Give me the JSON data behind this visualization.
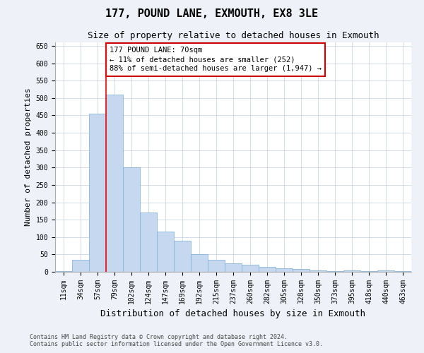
{
  "title": "177, POUND LANE, EXMOUTH, EX8 3LE",
  "subtitle": "Size of property relative to detached houses in Exmouth",
  "xlabel": "Distribution of detached houses by size in Exmouth",
  "ylabel": "Number of detached properties",
  "categories": [
    "11sqm",
    "34sqm",
    "57sqm",
    "79sqm",
    "102sqm",
    "124sqm",
    "147sqm",
    "169sqm",
    "192sqm",
    "215sqm",
    "237sqm",
    "260sqm",
    "282sqm",
    "305sqm",
    "328sqm",
    "350sqm",
    "373sqm",
    "395sqm",
    "418sqm",
    "440sqm",
    "463sqm"
  ],
  "values": [
    3,
    35,
    455,
    510,
    300,
    170,
    115,
    90,
    50,
    35,
    25,
    20,
    15,
    10,
    8,
    5,
    3,
    4,
    3,
    4,
    3
  ],
  "bar_color": "#c5d8f0",
  "bar_edge_color": "#7aadd4",
  "annotation_text": "177 POUND LANE: 70sqm\n← 11% of detached houses are smaller (252)\n88% of semi-detached houses are larger (1,947) →",
  "annotation_box_color": "#ffffff",
  "annotation_box_edge_color": "#cc0000",
  "ylim": [
    0,
    660
  ],
  "yticks": [
    0,
    50,
    100,
    150,
    200,
    250,
    300,
    350,
    400,
    450,
    500,
    550,
    600,
    650
  ],
  "footer_line1": "Contains HM Land Registry data © Crown copyright and database right 2024.",
  "footer_line2": "Contains public sector information licensed under the Open Government Licence v3.0.",
  "bg_color": "#eef2f8",
  "plot_bg_color": "#ffffff",
  "title_fontsize": 11,
  "subtitle_fontsize": 9,
  "tick_fontsize": 7,
  "ylabel_fontsize": 8,
  "xlabel_fontsize": 9,
  "footer_fontsize": 6,
  "annotation_fontsize": 7.5
}
